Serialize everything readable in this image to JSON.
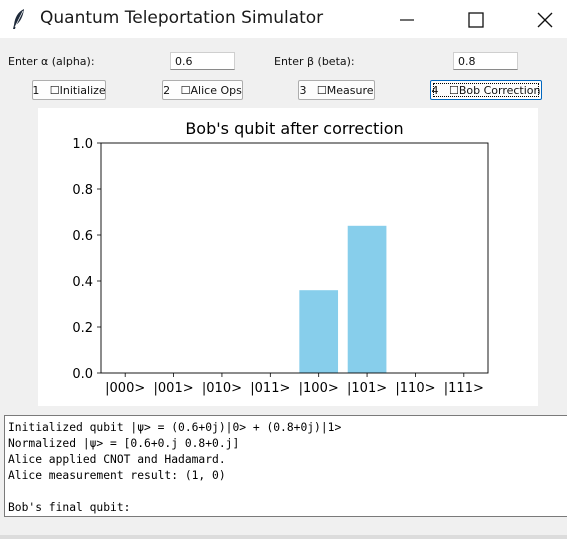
{
  "window": {
    "title": "Quantum Teleportation Simulator",
    "icon": "feather-icon"
  },
  "inputs": {
    "alpha_label": "Enter α (alpha):",
    "alpha_value": "0.6",
    "beta_label": "Enter β (beta):",
    "beta_value": "0.8"
  },
  "buttons": [
    {
      "label": "1   ☐Initialize",
      "focused": false
    },
    {
      "label": "2   ☐Alice Ops",
      "focused": false
    },
    {
      "label": "3   ☐Measure",
      "focused": false
    },
    {
      "label": "4   ☐Bob Correction",
      "focused": true
    }
  ],
  "chart_data": {
    "type": "bar",
    "title": "Bob's qubit after correction",
    "categories": [
      "|000>",
      "|001>",
      "|010>",
      "|011>",
      "|100>",
      "|101>",
      "|110>",
      "|111>"
    ],
    "values": [
      0,
      0,
      0,
      0,
      0.36,
      0.64,
      0,
      0
    ],
    "ylim": [
      0,
      1.0
    ],
    "yticks": [
      "0.0",
      "0.2",
      "0.4",
      "0.6",
      "0.8",
      "1.0"
    ],
    "bar_color": "#87ceeb",
    "grid": false
  },
  "log": {
    "lines": [
      "Initialized qubit |ψ> = (0.6+0j)|0> + (0.8+0j)|1>",
      "Normalized |ψ> = [0.6+0.j 0.8+0.j]",
      "Alice applied CNOT and Hadamard.",
      "Alice measurement result: (1, 0)",
      "",
      "Bob's final qubit:"
    ]
  }
}
